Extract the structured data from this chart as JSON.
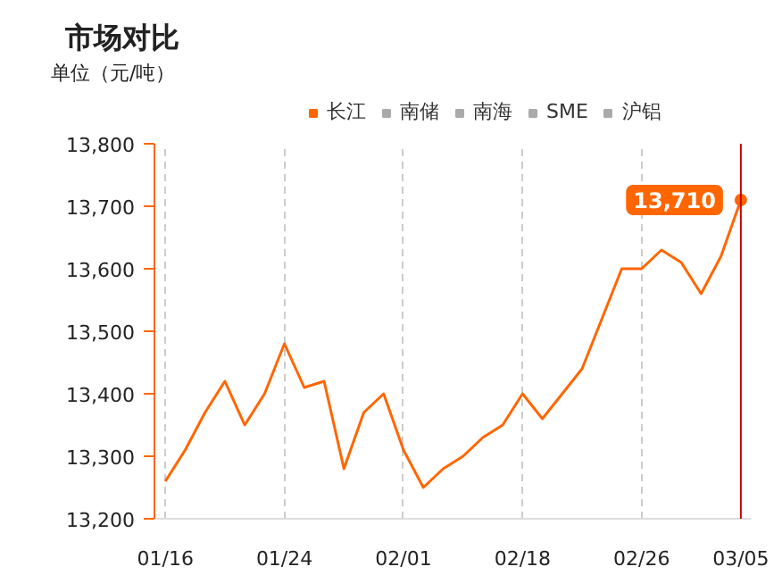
{
  "chart_data": {
    "type": "line",
    "title": "市场对比",
    "ylabel": "单位（元/吨）",
    "categories": [
      "01/16",
      null,
      null,
      null,
      null,
      null,
      "01/24",
      null,
      null,
      null,
      null,
      null,
      "02/01",
      null,
      null,
      null,
      null,
      null,
      "02/18",
      null,
      null,
      null,
      null,
      null,
      "02/26",
      null,
      null,
      null,
      null,
      "03/05"
    ],
    "series": [
      {
        "name": "长江",
        "color": "#ff6600",
        "values": [
          13260,
          13310,
          13370,
          13420,
          13350,
          13400,
          13480,
          13410,
          13420,
          13280,
          13370,
          13400,
          13310,
          13250,
          13280,
          13300,
          13330,
          13350,
          13400,
          13360,
          13400,
          13440,
          13520,
          13600,
          13600,
          13630,
          13610,
          13560,
          13620,
          13710
        ],
        "value_labels": [
          null,
          null,
          null,
          null,
          null,
          null,
          null,
          null,
          null,
          null,
          null,
          null,
          null,
          null,
          null,
          null,
          null,
          null,
          null,
          null,
          null,
          null,
          null,
          null,
          null,
          null,
          null,
          null,
          null,
          "13,710"
        ]
      },
      {
        "name": "南储",
        "color": "#aaaaaa",
        "values": [
          null,
          null,
          null,
          null,
          null,
          null,
          null,
          null,
          null,
          null,
          null,
          null,
          null,
          null,
          null,
          null,
          null,
          null,
          null,
          null,
          null,
          null,
          null,
          null,
          null,
          null,
          null,
          null,
          null,
          null
        ]
      },
      {
        "name": "南海",
        "color": "#aaaaaa",
        "values": [
          null,
          null,
          null,
          null,
          null,
          null,
          null,
          null,
          null,
          null,
          null,
          null,
          null,
          null,
          null,
          null,
          null,
          null,
          null,
          null,
          null,
          null,
          null,
          null,
          null,
          null,
          null,
          null,
          null,
          null
        ]
      },
      {
        "name": "SME",
        "color": "#aaaaaa",
        "values": [
          null,
          null,
          null,
          null,
          null,
          null,
          null,
          null,
          null,
          null,
          null,
          null,
          null,
          null,
          null,
          null,
          null,
          null,
          null,
          null,
          null,
          null,
          null,
          null,
          null,
          null,
          null,
          null,
          null,
          null
        ]
      },
      {
        "name": "沪铝",
        "color": "#aaaaaa",
        "values": [
          null,
          null,
          null,
          null,
          null,
          null,
          null,
          null,
          null,
          null,
          null,
          null,
          null,
          null,
          null,
          null,
          null,
          null,
          null,
          null,
          null,
          null,
          null,
          null,
          null,
          null,
          null,
          null,
          null,
          null
        ]
      }
    ],
    "ylim": [
      13200,
      13800
    ],
    "yticks": [
      {
        "value": 13200,
        "label": "13,200"
      },
      {
        "value": 13300,
        "label": "13,300"
      },
      {
        "value": 13400,
        "label": "13,400"
      },
      {
        "value": 13500,
        "label": "13,500"
      },
      {
        "value": 13600,
        "label": "13,600"
      },
      {
        "value": 13700,
        "label": "13,700"
      },
      {
        "value": 13800,
        "label": "13,800"
      }
    ],
    "ref_lines": [
      {
        "axis": "x",
        "value": "03/05",
        "color": "#cc0000"
      }
    ],
    "grid": "x",
    "legend": "top",
    "marker": "none",
    "line_style": "solid"
  }
}
